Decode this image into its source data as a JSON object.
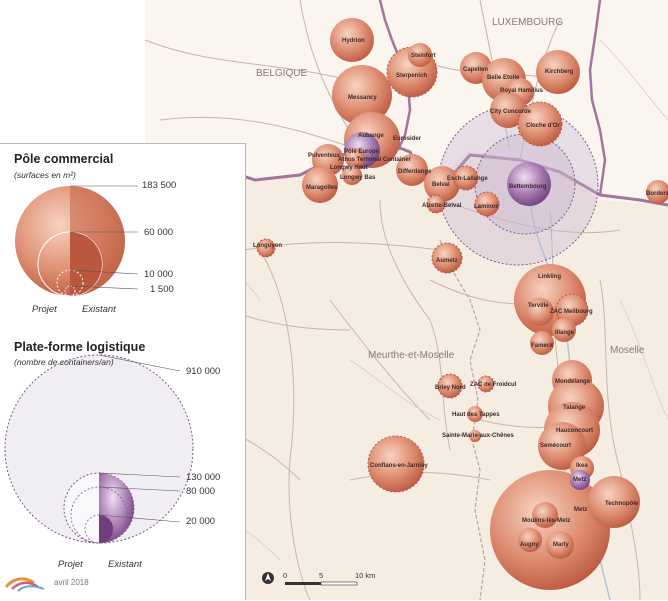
{
  "countries": {
    "belgium": "BELGIQUE",
    "luxembourg": "LUXEMBOURG"
  },
  "regions": {
    "meurthe": "Meurthe-et-Moselle",
    "moselle": "Moselle"
  },
  "places": [
    {
      "id": "hydrion",
      "label": "Hydrion"
    },
    {
      "id": "steinfort",
      "label": "Steinfort"
    },
    {
      "id": "sterpenich",
      "label": "Sterpenich"
    },
    {
      "id": "capellen",
      "label": "Capellen"
    },
    {
      "id": "belle-etoile",
      "label": "Belle Etoile"
    },
    {
      "id": "kirchberg",
      "label": "Kirchberg"
    },
    {
      "id": "royal-hamilius",
      "label": "Royal Hamilius"
    },
    {
      "id": "messancy",
      "label": "Messancy"
    },
    {
      "id": "city-concorde",
      "label": "City Concorde"
    },
    {
      "id": "cloche-dor",
      "label": "Cloche d'Or"
    },
    {
      "id": "aubange",
      "label": "Aubange"
    },
    {
      "id": "eurosider",
      "label": "Eurosider"
    },
    {
      "id": "pole-europe",
      "label": "Pôle Europe"
    },
    {
      "id": "pulventeux",
      "label": "Pulventeux"
    },
    {
      "id": "athus",
      "label": "Athus Terminal Container"
    },
    {
      "id": "longwy-haut",
      "label": "Longwy Haut"
    },
    {
      "id": "differdange",
      "label": "Differdange"
    },
    {
      "id": "longwy-bas",
      "label": "Longwy Bas"
    },
    {
      "id": "maragolles",
      "label": "Maragolles"
    },
    {
      "id": "belval",
      "label": "Belval"
    },
    {
      "id": "esch-lallange",
      "label": "Esch-Lallange"
    },
    {
      "id": "bettembourg",
      "label": "Bettembourg"
    },
    {
      "id": "alzette-belval",
      "label": "Alzette-Belval"
    },
    {
      "id": "laminoir",
      "label": "Laminoir"
    },
    {
      "id": "borders",
      "label": "Borders"
    },
    {
      "id": "longuyon",
      "label": "Longuyon"
    },
    {
      "id": "aumetz",
      "label": "Aumetz"
    },
    {
      "id": "linkling",
      "label": "Linkling"
    },
    {
      "id": "terville",
      "label": "Terville"
    },
    {
      "id": "zac-meilbourg",
      "label": "ZAC Meilbourg"
    },
    {
      "id": "illange",
      "label": "Illange"
    },
    {
      "id": "fameck",
      "label": "Fameck"
    },
    {
      "id": "mondelange",
      "label": "Mondelange"
    },
    {
      "id": "briey-nord",
      "label": "Briey Nord"
    },
    {
      "id": "zac-froidcul",
      "label": "ZAC de Froidcul"
    },
    {
      "id": "talange",
      "label": "Talange"
    },
    {
      "id": "haut-des-tappes",
      "label": "Haut des Tappes"
    },
    {
      "id": "hauconcourt",
      "label": "Hauconcourt"
    },
    {
      "id": "sainte-marie",
      "label": "Sainte-Marie-aux-Chênes"
    },
    {
      "id": "semecourt",
      "label": "Semécourt"
    },
    {
      "id": "conflans",
      "label": "Conflans-en-Jarnisy"
    },
    {
      "id": "ikea",
      "label": "Ikea"
    },
    {
      "id": "metz-log",
      "label": "Metz"
    },
    {
      "id": "technopole",
      "label": "Technopôle"
    },
    {
      "id": "metz",
      "label": "Metz"
    },
    {
      "id": "moulins",
      "label": "Moulins-lès-Metz"
    },
    {
      "id": "augny",
      "label": "Augny"
    },
    {
      "id": "marly",
      "label": "Marly"
    }
  ],
  "legend": {
    "commercial": {
      "title": "Pôle commercial",
      "subtitle": "(surfaces en m²)",
      "values": [
        "183 500",
        "60 000",
        "10 000",
        "1 500"
      ]
    },
    "logistics": {
      "title": "Plate-forme logistique",
      "subtitle": "(nombre de containers/an)",
      "values": [
        "910 000",
        "130 000",
        "80 000",
        "20 000"
      ]
    },
    "projet": "Projet",
    "existant": "Existant"
  },
  "scale": {
    "ticks": [
      "0",
      "5",
      "10 km"
    ]
  },
  "credit": "avril 2018",
  "colors": {
    "commercial": "#d4775c",
    "logistics": "#8a5a92",
    "land": "#f6ede2",
    "border": "#9b6d93"
  }
}
